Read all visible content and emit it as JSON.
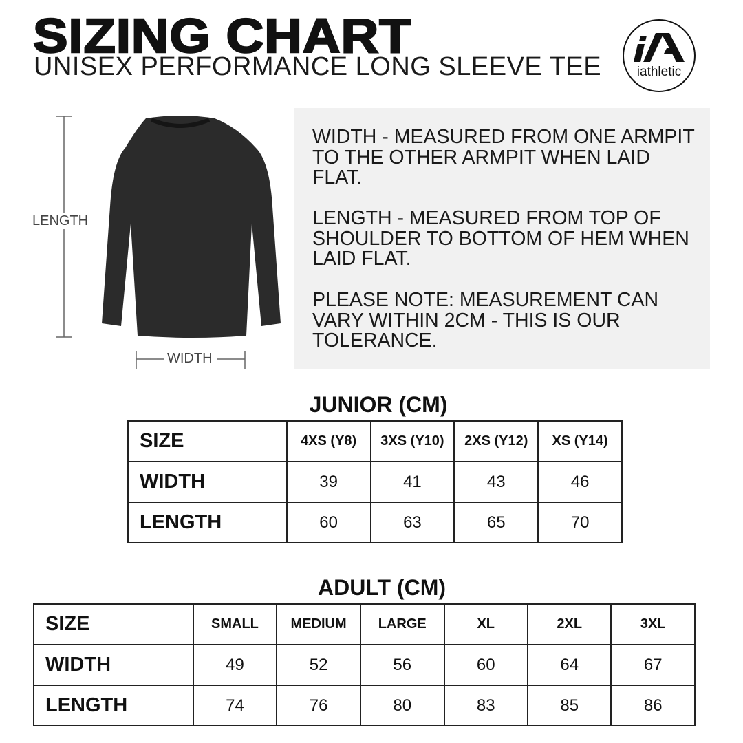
{
  "header": {
    "title": "SIZING CHART",
    "subtitle": "UNISEX PERFORMANCE LONG SLEEVE TEE",
    "logo": {
      "mark": "iA",
      "word": "iathletic"
    }
  },
  "diagram": {
    "length_label": "LENGTH",
    "width_label": "WIDTH",
    "shirt_color": "#2b2b2b"
  },
  "info": {
    "paragraphs": [
      "WIDTH - MEASURED FROM ONE ARMPIT TO THE OTHER ARMPIT WHEN LAID FLAT.",
      "LENGTH - MEASURED FROM TOP OF SHOULDER TO BOTTOM OF HEM WHEN LAID FLAT.",
      "PLEASE NOTE: MEASUREMENT CAN VARY WITHIN 2CM - THIS IS OUR TOLERANCE."
    ]
  },
  "junior": {
    "title": "JUNIOR (CM)",
    "headers": [
      "SIZE",
      "4XS (Y8)",
      "3XS (Y10)",
      "2XS (Y12)",
      "XS (Y14)"
    ],
    "rows": [
      [
        "WIDTH",
        "39",
        "41",
        "43",
        "46"
      ],
      [
        "LENGTH",
        "60",
        "63",
        "65",
        "70"
      ]
    ]
  },
  "adult": {
    "title": "ADULT (CM)",
    "headers": [
      "SIZE",
      "SMALL",
      "MEDIUM",
      "LARGE",
      "XL",
      "2XL",
      "3XL"
    ],
    "rows": [
      [
        "WIDTH",
        "49",
        "52",
        "56",
        "60",
        "64",
        "67"
      ],
      [
        "LENGTH",
        "74",
        "76",
        "80",
        "83",
        "85",
        "86"
      ]
    ]
  }
}
